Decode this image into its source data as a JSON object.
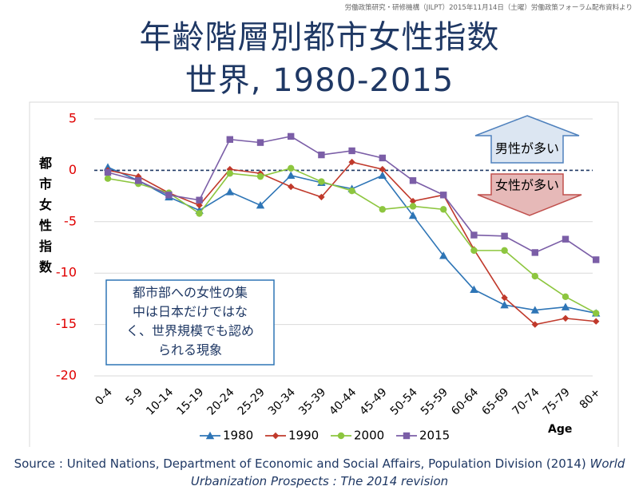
{
  "credit": "労働政策研究・研修機構（JILPT）2015年11月14日（土曜）労働政策フォーラム配布資料より",
  "title_line1": "年齢階層別都市女性指数",
  "title_line2": "世界, 1980-2015",
  "source_normal": "Source : United Nations, Department of Economic and Social Affairs, Population Division (2014) ",
  "source_italic_1": "World",
  "source_italic_2": "Urbanization Prospects : The 2014 revision",
  "note_lines": [
    "都市部への女性の集",
    "中は日本だけではな",
    "く、世界規模でも認め",
    "られる現象"
  ],
  "arrow_up_label": "男性が多い",
  "arrow_down_label": "女性が多い",
  "colors": {
    "title": "#1f3864",
    "tick_y": "#e00000",
    "arrow_up_fill": "#dce6f2",
    "arrow_up_stroke": "#4f81bd",
    "arrow_down_fill": "#e6b9b8",
    "arrow_down_stroke": "#c0504d"
  },
  "chart_data": {
    "type": "line",
    "title": "",
    "xlabel": "Age",
    "ylabel": "都市女性指数",
    "ylim": [
      -20,
      5
    ],
    "yticks": [
      5,
      0,
      -5,
      -10,
      -15,
      -20
    ],
    "grid": "horizontal",
    "legend_position": "bottom",
    "categories": [
      "0-4",
      "5-9",
      "10-14",
      "15-19",
      "20-24",
      "25-29",
      "30-34",
      "35-39",
      "40-44",
      "45-49",
      "50-54",
      "55-59",
      "60-64",
      "65-69",
      "70-74",
      "75-79",
      "80+"
    ],
    "series": [
      {
        "name": "1980",
        "color": "#2e75b6",
        "marker": "triangle",
        "values": [
          0.3,
          -1.0,
          -2.6,
          -3.9,
          -2.1,
          -3.4,
          -0.5,
          -1.2,
          -1.8,
          -0.5,
          -4.4,
          -8.3,
          -11.6,
          -13.1,
          -13.6,
          -13.3,
          -13.9
        ]
      },
      {
        "name": "1990",
        "color": "#c0392b",
        "marker": "diamond",
        "values": [
          0.0,
          -0.6,
          -2.2,
          -3.4,
          0.1,
          -0.3,
          -1.6,
          -2.6,
          0.8,
          0.1,
          -3.0,
          -2.4,
          -7.7,
          -12.4,
          -15.0,
          -14.4,
          -14.7
        ]
      },
      {
        "name": "2000",
        "color": "#8dc63f",
        "marker": "circle",
        "values": [
          -0.8,
          -1.3,
          -2.2,
          -4.2,
          -0.3,
          -0.6,
          0.2,
          -1.1,
          -2.0,
          -3.8,
          -3.5,
          -3.8,
          -7.8,
          -7.8,
          -10.3,
          -12.3,
          -13.9
        ]
      },
      {
        "name": "2015",
        "color": "#7b5ea7",
        "marker": "square",
        "values": [
          -0.2,
          -1.0,
          -2.4,
          -2.9,
          3.0,
          2.7,
          3.3,
          1.5,
          1.9,
          1.2,
          -1.0,
          -2.4,
          -6.3,
          -6.4,
          -8.0,
          -6.7,
          -8.7
        ]
      }
    ]
  }
}
